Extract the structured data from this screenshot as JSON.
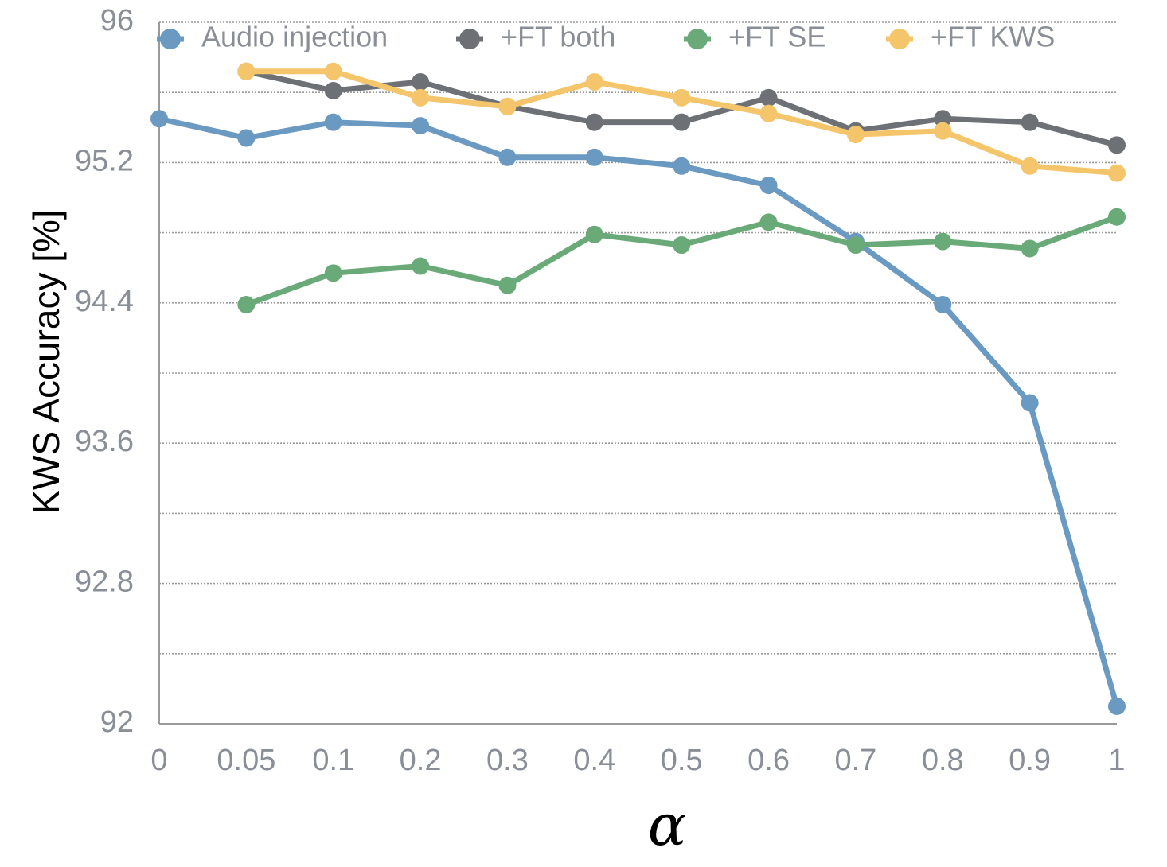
{
  "chart_data": {
    "type": "line",
    "title": "",
    "xlabel": "α",
    "ylabel": "KWS Accuracy [%]",
    "categories": [
      "0",
      "0.05",
      "0.1",
      "0.2",
      "0.3",
      "0.4",
      "0.5",
      "0.6",
      "0.7",
      "0.8",
      "0.9",
      "1"
    ],
    "y_ticks": [
      92,
      92.8,
      93.6,
      94.4,
      95.2,
      96
    ],
    "y_tick_labels": [
      "92",
      "92.8",
      "93.6",
      "94.4",
      "95.2",
      "96"
    ],
    "ylim": [
      92,
      96
    ],
    "grid": true,
    "legend_position": "top",
    "series": [
      {
        "name": "Audio injection",
        "color": "#6a99c1",
        "values": [
          95.45,
          95.34,
          95.43,
          95.41,
          95.23,
          95.23,
          95.18,
          95.07,
          94.75,
          94.39,
          93.83,
          92.1
        ]
      },
      {
        "name": "+FT both",
        "color": "#6d7175",
        "values": [
          null,
          95.72,
          95.61,
          95.66,
          95.52,
          95.43,
          95.43,
          95.57,
          95.38,
          95.45,
          95.43,
          95.3
        ]
      },
      {
        "name": "+FT SE",
        "color": "#6aaa78",
        "values": [
          null,
          94.39,
          94.57,
          94.61,
          94.5,
          94.79,
          94.73,
          94.86,
          94.73,
          94.75,
          94.71,
          94.89
        ]
      },
      {
        "name": "+FT KWS",
        "color": "#f4c56b",
        "values": [
          null,
          95.72,
          95.72,
          95.57,
          95.52,
          95.66,
          95.57,
          95.48,
          95.36,
          95.38,
          95.18,
          95.14
        ]
      }
    ]
  }
}
